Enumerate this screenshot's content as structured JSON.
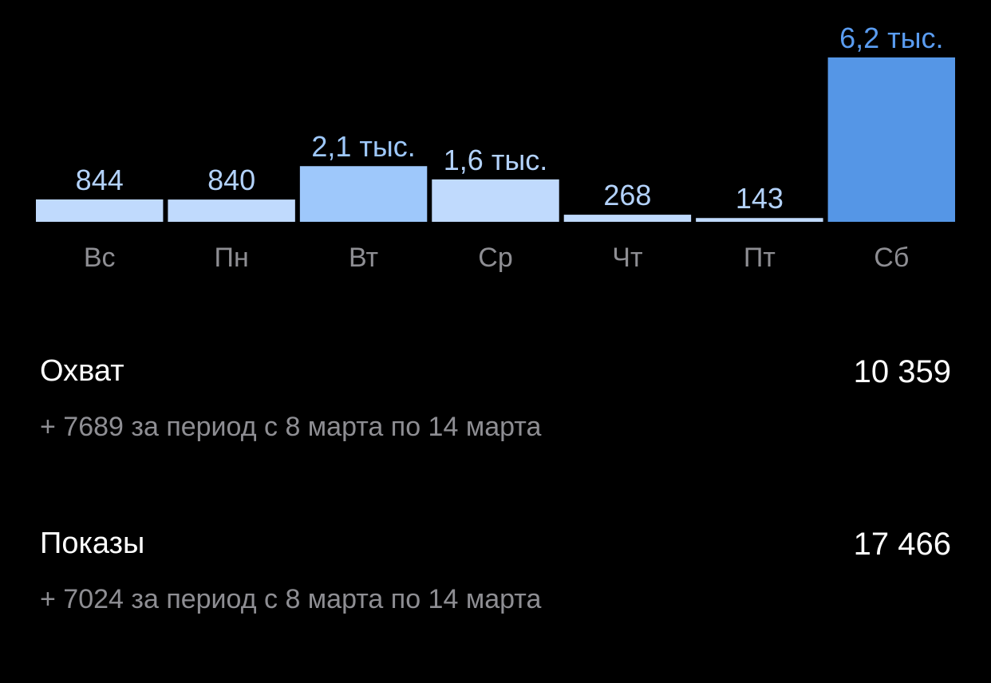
{
  "chart_data": {
    "type": "bar",
    "categories": [
      "Вс",
      "Пн",
      "Вт",
      "Ср",
      "Чт",
      "Пт",
      "Сб"
    ],
    "values": [
      844,
      840,
      2100,
      1600,
      268,
      143,
      6200
    ],
    "value_labels": [
      "844",
      "840",
      "2,1 тыс.",
      "1,6 тыс.",
      "268",
      "143",
      "6,2 тыс."
    ],
    "colors": [
      "#c0dafd",
      "#c0dafd",
      "#9ec8fb",
      "#c0dafd",
      "#c0dafd",
      "#c0dafd",
      "#5596e6"
    ],
    "label_colors": [
      "#b3d2fb",
      "#b3d2fb",
      "#9ec8fb",
      "#b3d2fb",
      "#b3d2fb",
      "#b3d2fb",
      "#5a9cf0"
    ]
  },
  "stats": [
    {
      "label": "Охват",
      "value": "10 359",
      "note": "+ 7689 за период с 8 марта по 14 марта"
    },
    {
      "label": "Показы",
      "value": "17 466",
      "note": "+ 7024 за период с 8 марта по 14 марта"
    }
  ]
}
